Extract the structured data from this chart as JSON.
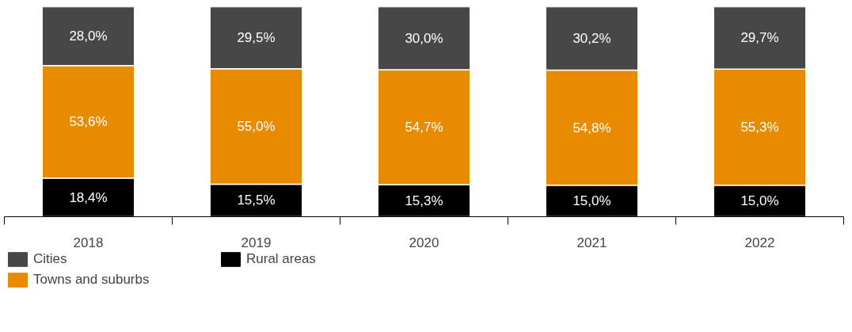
{
  "chart_data": {
    "type": "bar",
    "stacked": true,
    "categories": [
      "2018",
      "2019",
      "2020",
      "2021",
      "2022"
    ],
    "ylim": [
      0,
      100
    ],
    "tick_labels": "x",
    "grid": false,
    "legend": "bottom left",
    "series": [
      {
        "name": "Rural areas",
        "color": "#000000",
        "values": [
          18.4,
          15.5,
          15.3,
          15.0,
          15.0
        ],
        "value_labels": [
          "18,4%",
          "15,5%",
          "15,3%",
          "15,0%",
          "15,0%"
        ]
      },
      {
        "name": "Towns and suburbs",
        "color": "#e88b00",
        "values": [
          53.6,
          55.0,
          54.7,
          54.8,
          55.3
        ],
        "value_labels": [
          "53,6%",
          "55,0%",
          "54,7%",
          "54,8%",
          "55,3%"
        ]
      },
      {
        "name": "Cities",
        "color": "#474747",
        "values": [
          28.0,
          29.5,
          30.0,
          30.2,
          29.7
        ],
        "value_labels": [
          "28,0%",
          "29,5%",
          "30,0%",
          "30,2%",
          "29,7%"
        ]
      }
    ]
  }
}
